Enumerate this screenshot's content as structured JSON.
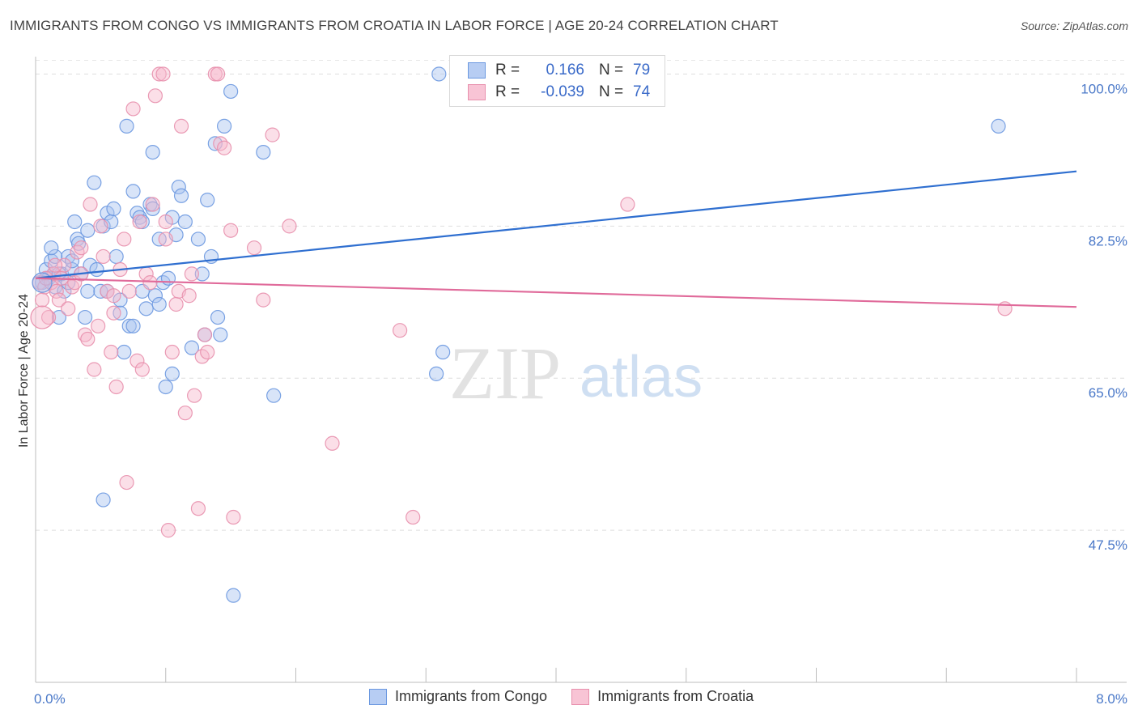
{
  "header": {
    "title": "IMMIGRANTS FROM CONGO VS IMMIGRANTS FROM CROATIA IN LABOR FORCE | AGE 20-24 CORRELATION CHART",
    "source": "Source: ZipAtlas.com"
  },
  "watermark": {
    "zip": "ZIP",
    "atlas": "atlas"
  },
  "legend": {
    "r_label": "R =",
    "n_label": "N =",
    "rows": [
      {
        "r": "0.166",
        "n": "79"
      },
      {
        "r": "-0.039",
        "n": "74"
      }
    ]
  },
  "colors": {
    "congo_fill": "#a9c4ef",
    "congo_stroke": "#6b98e0",
    "congo_line": "#2f6fd0",
    "croatia_fill": "#f6b8cc",
    "croatia_stroke": "#e890ad",
    "croatia_line": "#e06a9a",
    "tick_text": "#4a78c8"
  },
  "chart_data": {
    "type": "scatter",
    "title": "IMMIGRANTS FROM CONGO VS IMMIGRANTS FROM CROATIA IN LABOR FORCE | AGE 20-24 CORRELATION CHART",
    "xlabel": "",
    "ylabel": "In Labor Force | Age 20-24",
    "xlim": [
      0,
      8
    ],
    "ylim": [
      30,
      102
    ],
    "x_tick_labels": [
      "0.0%",
      "8.0%"
    ],
    "y_ticks": [
      47.5,
      65.0,
      82.5,
      100.0
    ],
    "y_tick_labels": [
      "47.5%",
      "65.0%",
      "82.5%",
      "100.0%"
    ],
    "grid": true,
    "series": [
      {
        "name": "Immigrants from Congo",
        "r": 0.166,
        "n": 79,
        "trend": {
          "x0": 0.0,
          "y0": 76.5,
          "x1": 8.0,
          "y1": 88.8
        },
        "points": [
          [
            0.05,
            76.0
          ],
          [
            0.08,
            77.5
          ],
          [
            0.1,
            76.5
          ],
          [
            0.12,
            78.5
          ],
          [
            0.14,
            77.0
          ],
          [
            0.15,
            75.5
          ],
          [
            0.18,
            72.0
          ],
          [
            0.2,
            77.0
          ],
          [
            0.22,
            75.0
          ],
          [
            0.25,
            79.0
          ],
          [
            0.28,
            77.5
          ],
          [
            0.3,
            83.0
          ],
          [
            0.32,
            81.0
          ],
          [
            0.35,
            77.0
          ],
          [
            0.38,
            72.0
          ],
          [
            0.4,
            75.0
          ],
          [
            0.42,
            78.0
          ],
          [
            0.45,
            87.5
          ],
          [
            0.47,
            77.5
          ],
          [
            0.5,
            75.0
          ],
          [
            0.52,
            82.5
          ],
          [
            0.55,
            84.0
          ],
          [
            0.58,
            83.0
          ],
          [
            0.6,
            84.5
          ],
          [
            0.62,
            79.0
          ],
          [
            0.65,
            72.5
          ],
          [
            0.68,
            68.0
          ],
          [
            0.7,
            94.0
          ],
          [
            0.72,
            71.0
          ],
          [
            0.75,
            86.5
          ],
          [
            0.78,
            84.0
          ],
          [
            0.8,
            83.5
          ],
          [
            0.82,
            83.0
          ],
          [
            0.85,
            73.0
          ],
          [
            0.88,
            85.0
          ],
          [
            0.9,
            91.0
          ],
          [
            0.92,
            74.5
          ],
          [
            0.95,
            81.0
          ],
          [
            0.98,
            76.0
          ],
          [
            1.0,
            64.0
          ],
          [
            1.02,
            76.5
          ],
          [
            1.05,
            83.5
          ],
          [
            1.08,
            81.5
          ],
          [
            1.1,
            87.0
          ],
          [
            1.12,
            86.0
          ],
          [
            1.2,
            68.5
          ],
          [
            1.25,
            81.0
          ],
          [
            1.28,
            77.0
          ],
          [
            1.3,
            70.0
          ],
          [
            1.32,
            85.5
          ],
          [
            1.35,
            79.0
          ],
          [
            1.38,
            92.0
          ],
          [
            1.4,
            72.0
          ],
          [
            1.42,
            70.0
          ],
          [
            1.45,
            94.0
          ],
          [
            1.5,
            98.0
          ],
          [
            1.52,
            40.0
          ],
          [
            1.75,
            91.0
          ],
          [
            1.83,
            63.0
          ],
          [
            3.08,
            65.5
          ],
          [
            3.1,
            100.0
          ],
          [
            3.13,
            68.0
          ],
          [
            0.52,
            51.0
          ],
          [
            0.28,
            78.5
          ],
          [
            0.33,
            80.5
          ],
          [
            0.15,
            79.0
          ],
          [
            0.95,
            73.5
          ],
          [
            0.82,
            75.0
          ],
          [
            1.05,
            65.5
          ],
          [
            0.18,
            77.0
          ],
          [
            0.25,
            76.0
          ],
          [
            0.4,
            82.0
          ],
          [
            0.55,
            75.0
          ],
          [
            0.65,
            74.0
          ],
          [
            0.75,
            71.0
          ],
          [
            0.9,
            84.5
          ],
          [
            1.15,
            83.0
          ],
          [
            0.12,
            80.0
          ],
          [
            7.4,
            94.0
          ]
        ]
      },
      {
        "name": "Immigrants from Croatia",
        "r": -0.039,
        "n": 74,
        "trend": {
          "x0": 0.0,
          "y0": 76.5,
          "x1": 8.0,
          "y1": 73.2
        },
        "points": [
          [
            0.03,
            76.0
          ],
          [
            0.05,
            74.0
          ],
          [
            0.07,
            75.5
          ],
          [
            0.1,
            72.0
          ],
          [
            0.12,
            76.0
          ],
          [
            0.14,
            77.0
          ],
          [
            0.16,
            75.0
          ],
          [
            0.18,
            74.0
          ],
          [
            0.2,
            76.5
          ],
          [
            0.22,
            78.0
          ],
          [
            0.25,
            73.0
          ],
          [
            0.28,
            75.5
          ],
          [
            0.3,
            76.0
          ],
          [
            0.32,
            79.5
          ],
          [
            0.35,
            80.0
          ],
          [
            0.38,
            70.0
          ],
          [
            0.4,
            69.5
          ],
          [
            0.42,
            85.0
          ],
          [
            0.45,
            66.0
          ],
          [
            0.48,
            71.0
          ],
          [
            0.5,
            82.5
          ],
          [
            0.52,
            79.0
          ],
          [
            0.55,
            75.0
          ],
          [
            0.58,
            68.0
          ],
          [
            0.6,
            74.5
          ],
          [
            0.62,
            64.0
          ],
          [
            0.65,
            77.5
          ],
          [
            0.68,
            81.0
          ],
          [
            0.7,
            53.0
          ],
          [
            0.72,
            75.0
          ],
          [
            0.75,
            96.0
          ],
          [
            0.78,
            67.0
          ],
          [
            0.8,
            83.0
          ],
          [
            0.82,
            66.0
          ],
          [
            0.85,
            77.0
          ],
          [
            0.88,
            76.0
          ],
          [
            0.9,
            85.0
          ],
          [
            0.92,
            97.5
          ],
          [
            0.95,
            100.0
          ],
          [
            0.98,
            100.0
          ],
          [
            1.0,
            83.0
          ],
          [
            1.02,
            47.5
          ],
          [
            1.05,
            68.0
          ],
          [
            1.08,
            73.5
          ],
          [
            1.1,
            75.0
          ],
          [
            1.12,
            94.0
          ],
          [
            1.15,
            61.0
          ],
          [
            1.18,
            74.5
          ],
          [
            1.2,
            77.0
          ],
          [
            1.22,
            63.0
          ],
          [
            1.25,
            50.0
          ],
          [
            1.28,
            67.5
          ],
          [
            1.3,
            70.0
          ],
          [
            1.32,
            68.0
          ],
          [
            1.38,
            100.0
          ],
          [
            1.4,
            100.0
          ],
          [
            1.42,
            92.0
          ],
          [
            1.45,
            91.5
          ],
          [
            1.5,
            82.0
          ],
          [
            1.52,
            49.0
          ],
          [
            1.68,
            80.0
          ],
          [
            1.75,
            74.0
          ],
          [
            1.82,
            93.0
          ],
          [
            1.95,
            82.5
          ],
          [
            2.28,
            57.5
          ],
          [
            2.8,
            70.5
          ],
          [
            2.9,
            49.0
          ],
          [
            4.55,
            85.0
          ],
          [
            7.45,
            73.0
          ],
          [
            0.08,
            76.5
          ],
          [
            0.15,
            78.0
          ],
          [
            0.35,
            77.0
          ],
          [
            0.6,
            72.5
          ],
          [
            1.0,
            81.0
          ]
        ]
      }
    ]
  },
  "bottom_legend": {
    "items": [
      {
        "label": "Immigrants from Congo"
      },
      {
        "label": "Immigrants from Croatia"
      }
    ]
  }
}
